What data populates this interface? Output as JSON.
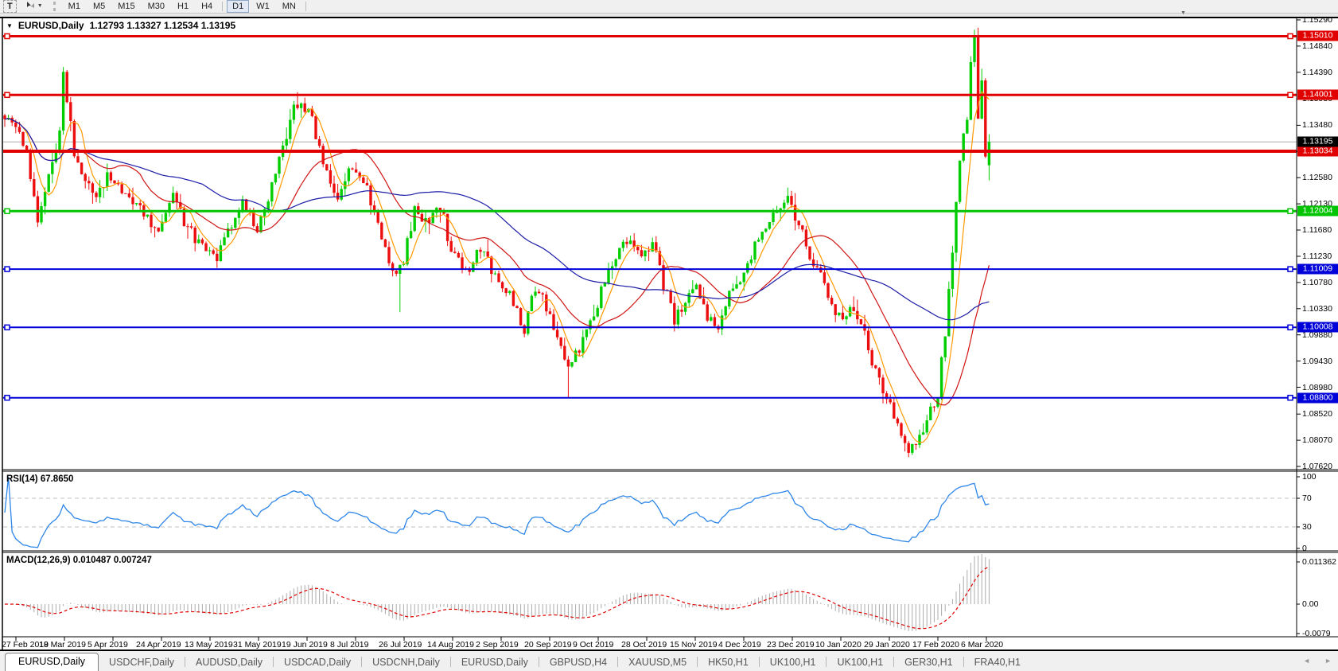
{
  "toolbar": {
    "text_tool_label": "T",
    "cursor_tool_caret": "▼",
    "timeframe_groups": [
      [
        "M1",
        "M5",
        "M15",
        "M30",
        "H1",
        "H4"
      ],
      [
        "D1",
        "W1",
        "MN"
      ]
    ],
    "active_timeframe": "D1"
  },
  "window": {
    "topstrip_marker": "▼"
  },
  "header": {
    "dropdown_marker": "▼",
    "symbol": "EURUSD,Daily",
    "ohlc": "1.12793 1.13327 1.12534 1.13195"
  },
  "indicators": {
    "rsi_label": "RSI(14) 67.8650",
    "macd_label": "MACD(12,26,9) 0.010487 0.007247"
  },
  "tabs": {
    "scroll_left": "◄",
    "scroll_right": "►",
    "items": [
      {
        "label": "EURUSD,Daily",
        "active": true
      },
      {
        "label": "USDCHF,Daily",
        "active": false
      },
      {
        "label": "AUDUSD,Daily",
        "active": false
      },
      {
        "label": "USDCAD,Daily",
        "active": false
      },
      {
        "label": "USDCNH,Daily",
        "active": false
      },
      {
        "label": "EURUSD,Daily",
        "active": false
      },
      {
        "label": "GBPUSD,H4",
        "active": false
      },
      {
        "label": "XAUUSD,M5",
        "active": false
      },
      {
        "label": "HK50,H1",
        "active": false
      },
      {
        "label": "UK100,H1",
        "active": false
      },
      {
        "label": "UK100,H1",
        "active": false
      },
      {
        "label": "GER30,H1",
        "active": false
      },
      {
        "label": "FRA40,H1",
        "active": false
      }
    ]
  },
  "chart_data": {
    "type": "candlestick",
    "symbol": "EURUSD",
    "timeframe": "Daily",
    "title_ohlc": {
      "open": 1.12793,
      "high": 1.13327,
      "low": 1.12534,
      "close": 1.13195
    },
    "candle_count": 270,
    "up_color": "#00CE00",
    "down_color": "#EC0e0e",
    "close_waypoints": [
      [
        0,
        1.1365
      ],
      [
        3,
        1.134
      ],
      [
        6,
        1.1305
      ],
      [
        9,
        1.1185
      ],
      [
        12,
        1.1255
      ],
      [
        15,
        1.1335
      ],
      [
        16,
        1.1435
      ],
      [
        19,
        1.1305
      ],
      [
        24,
        1.1225
      ],
      [
        28,
        1.126
      ],
      [
        33,
        1.123
      ],
      [
        38,
        1.12
      ],
      [
        42,
        1.1155
      ],
      [
        46,
        1.123
      ],
      [
        50,
        1.117
      ],
      [
        55,
        1.1135
      ],
      [
        58,
        1.1115
      ],
      [
        62,
        1.118
      ],
      [
        65,
        1.122
      ],
      [
        69,
        1.1165
      ],
      [
        73,
        1.124
      ],
      [
        76,
        1.131
      ],
      [
        79,
        1.1375
      ],
      [
        81,
        1.139
      ],
      [
        84,
        1.1355
      ],
      [
        87,
        1.1285
      ],
      [
        91,
        1.1225
      ],
      [
        95,
        1.128
      ],
      [
        99,
        1.124
      ],
      [
        103,
        1.115
      ],
      [
        107,
        1.1085
      ],
      [
        109,
        1.1115
      ],
      [
        112,
        1.1205
      ],
      [
        116,
        1.1175
      ],
      [
        119,
        1.121
      ],
      [
        122,
        1.1135
      ],
      [
        126,
        1.1095
      ],
      [
        130,
        1.114
      ],
      [
        134,
        1.1085
      ],
      [
        139,
        1.1045
      ],
      [
        142,
        1.0995
      ],
      [
        145,
        1.107
      ],
      [
        148,
        1.1035
      ],
      [
        151,
        1.099
      ],
      [
        154,
        1.0935
      ],
      [
        157,
        1.0965
      ],
      [
        160,
        1.1005
      ],
      [
        164,
        1.108
      ],
      [
        168,
        1.114
      ],
      [
        171,
        1.116
      ],
      [
        174,
        1.1115
      ],
      [
        177,
        1.115
      ],
      [
        180,
        1.1075
      ],
      [
        183,
        1.1015
      ],
      [
        186,
        1.105
      ],
      [
        189,
        1.1065
      ],
      [
        192,
        1.1015
      ],
      [
        195,
        1.1005
      ],
      [
        198,
        1.106
      ],
      [
        201,
        1.1085
      ],
      [
        205,
        1.114
      ],
      [
        208,
        1.117
      ],
      [
        211,
        1.12
      ],
      [
        214,
        1.1225
      ],
      [
        217,
        1.1175
      ],
      [
        220,
        1.1125
      ],
      [
        223,
        1.1095
      ],
      [
        226,
        1.1045
      ],
      [
        229,
        1.1005
      ],
      [
        232,
        1.1035
      ],
      [
        235,
        1.0985
      ],
      [
        238,
        1.0925
      ],
      [
        241,
        1.0875
      ],
      [
        244,
        1.0835
      ],
      [
        247,
        1.0795
      ],
      [
        250,
        1.0815
      ],
      [
        253,
        1.0855
      ],
      [
        255,
        1.0885
      ],
      [
        257,
        1.0995
      ],
      [
        259,
        1.1135
      ],
      [
        261,
        1.1285
      ],
      [
        263,
        1.1365
      ],
      [
        264,
        1.1455
      ],
      [
        265,
        1.149
      ],
      [
        266,
        1.1365
      ],
      [
        267,
        1.143
      ],
      [
        268,
        1.1285
      ],
      [
        269,
        1.13195
      ]
    ],
    "wick_pins": [
      {
        "i": 9,
        "l": 1.1176
      },
      {
        "i": 16,
        "h": 1.1448
      },
      {
        "i": 80,
        "h": 1.1405
      },
      {
        "i": 108,
        "l": 1.1027
      },
      {
        "i": 154,
        "l": 1.0879
      },
      {
        "i": 247,
        "l": 1.0778
      },
      {
        "i": 265,
        "h": 1.1495
      }
    ],
    "last_candle": {
      "o": 1.12793,
      "h": 1.13327,
      "l": 1.12534,
      "c": 1.13195
    },
    "moving_averages": [
      {
        "name": "ma-fast",
        "period": 6,
        "color": "#FF9900"
      },
      {
        "name": "ma-medium",
        "period": 22,
        "color": "#D01414"
      },
      {
        "name": "ma-slow",
        "period": 55,
        "color": "#1C1CA8"
      }
    ],
    "price_axis": {
      "top_price": 1.1529,
      "bottom_price": 1.0762,
      "ticks": [
        "1.15290",
        "1.14840",
        "1.14390",
        "1.13930",
        "1.13480",
        "1.13030",
        "1.12580",
        "1.12130",
        "1.11680",
        "1.11230",
        "1.10780",
        "1.10330",
        "1.09880",
        "1.09430",
        "1.08980",
        "1.08520",
        "1.08070",
        "1.07620"
      ]
    },
    "hlines": [
      {
        "label": "1.15010",
        "price": 1.1501,
        "color": "#E00000",
        "width": 3,
        "anchors": true
      },
      {
        "label": "1.14001",
        "price": 1.14001,
        "color": "#E00000",
        "width": 3,
        "anchors": true
      },
      {
        "label": "1.13034",
        "price": 1.13034,
        "color": "#E00000",
        "width": 4,
        "anchors": false
      },
      {
        "label": "1.12004",
        "price": 1.12004,
        "color": "#00C400",
        "width": 3,
        "anchors": true
      },
      {
        "label": "1.11009",
        "price": 1.11009,
        "color": "#0000D8",
        "width": 2,
        "anchors": true
      },
      {
        "label": "1.10008",
        "price": 1.10008,
        "color": "#0000D8",
        "width": 2,
        "anchors": true
      },
      {
        "label": "1.08800",
        "price": 1.088,
        "color": "#0000D8",
        "width": 2,
        "anchors": true
      }
    ],
    "current_price": {
      "label": "1.13195",
      "price": 1.13195,
      "tag_color": "#000000",
      "line_color": "#ABABAB"
    },
    "rsi": {
      "period": 14,
      "value": 67.865,
      "axis_labels": [
        "100",
        "70",
        "30",
        "0"
      ],
      "axis_values": [
        100,
        70,
        30,
        0
      ],
      "overbought": 70,
      "oversold": 30,
      "line_color": "#2E86E8",
      "level_color": "#BFBFBF"
    },
    "macd": {
      "fast": 12,
      "slow": 26,
      "signal": 9,
      "macd_value": 0.010487,
      "signal_value": 0.007247,
      "axis": [
        {
          "label": "0.011362",
          "value": 0.011362
        },
        {
          "label": "0.00",
          "value": 0
        },
        {
          "label": "-0.0079",
          "value": -0.0079
        }
      ],
      "histogram_color": "#ABABAB",
      "signal_color": "#E00000"
    },
    "date_labels": [
      "27 Feb 2019",
      "18 Mar 2019",
      "5 Apr 2019",
      "24 Apr 2019",
      "13 May 2019",
      "31 May 2019",
      "19 Jun 2019",
      "8 Jul 2019",
      "26 Jul 2019",
      "14 Aug 2019",
      "2 Sep 2019",
      "20 Sep 2019",
      "9 Oct 2019",
      "28 Oct 2019",
      "15 Nov 2019",
      "4 Dec 2019",
      "23 Dec 2019",
      "10 Jan 2020",
      "29 Jan 2020",
      "17 Feb 2020",
      "6 Mar 2020"
    ]
  }
}
